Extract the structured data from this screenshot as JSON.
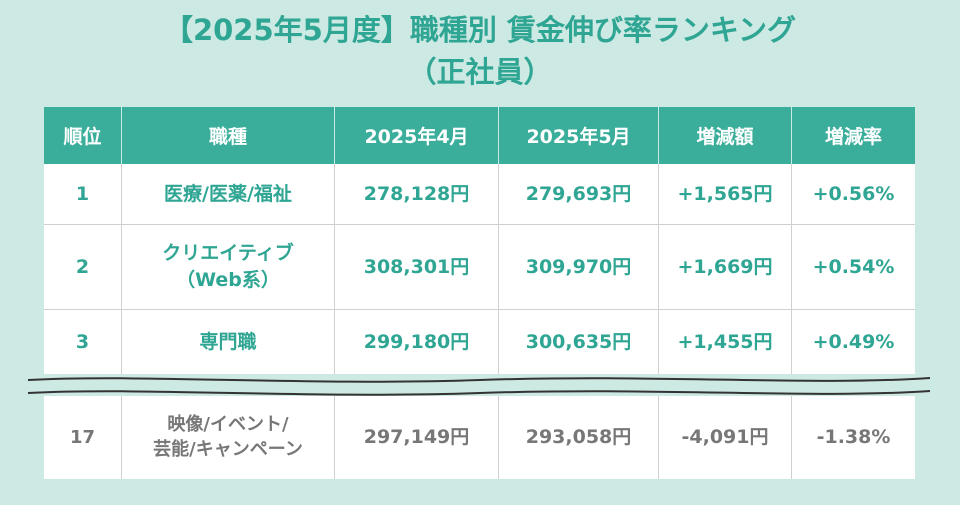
{
  "title": {
    "line1": "【2025年5月度】職種別 賃金伸び率ランキング",
    "line2": "（正社員）"
  },
  "table": {
    "headers": [
      "順位",
      "職種",
      "2025年4月",
      "2025年5月",
      "増減額",
      "増減率"
    ],
    "rows": [
      {
        "rank": "1",
        "job_line1": "医療/医薬/福祉",
        "job_line2": "",
        "april": "278,128円",
        "may": "279,693円",
        "diff": "+1,565円",
        "rate": "+0.56%"
      },
      {
        "rank": "2",
        "job_line1": "クリエイティブ",
        "job_line2": "（Web系）",
        "april": "308,301円",
        "may": "309,970円",
        "diff": "+1,669円",
        "rate": "+0.54%"
      },
      {
        "rank": "3",
        "job_line1": "専門職",
        "job_line2": "",
        "april": "299,180円",
        "may": "300,635円",
        "diff": "+1,455円",
        "rate": "+0.49%"
      }
    ],
    "last_row": {
      "rank": "17",
      "job_line1": "映像/イベント/",
      "job_line2": "芸能/キャンペーン",
      "april": "297,149円",
      "may": "293,058円",
      "diff": "-4,091円",
      "rate": "-1.38%"
    }
  },
  "colors": {
    "background": "#cde9e3",
    "accent": "#2fa593",
    "header_bg": "#3aae9b",
    "muted_text": "#777777"
  }
}
